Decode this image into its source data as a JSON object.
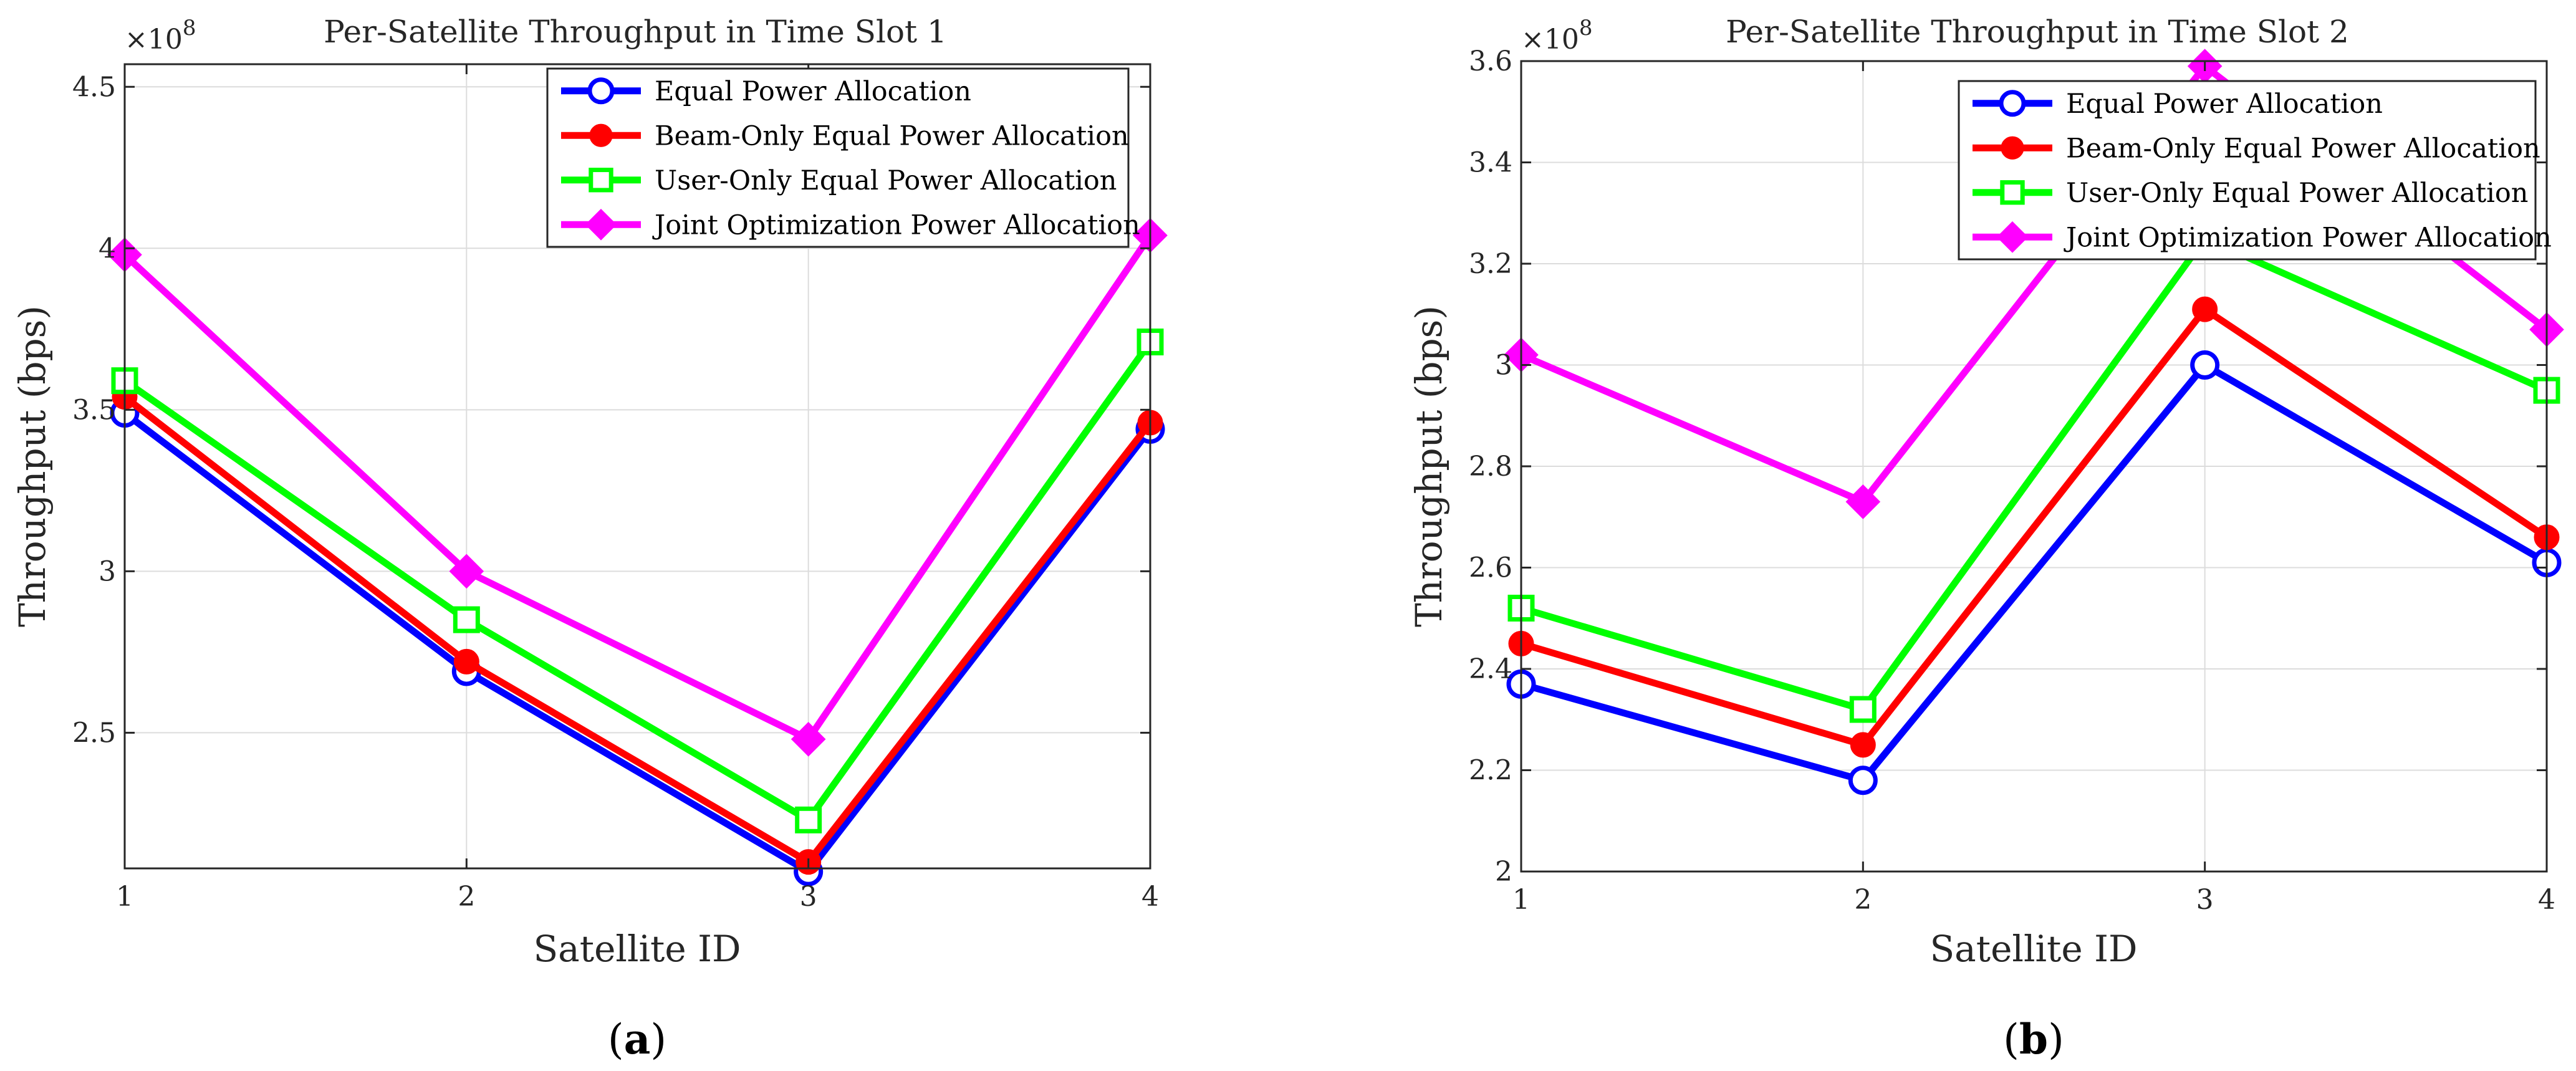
{
  "colors": {
    "equal": "#0000ff",
    "beam": "#ff0000",
    "user": "#00ff00",
    "joint": "#ff00ff"
  },
  "chart_data": [
    {
      "type": "line",
      "title": "Per-Satellite Throughput in Time Slot 1",
      "xlabel": "Satellite ID",
      "ylabel": "Throughput (bps)",
      "exponent_label": "×10",
      "exponent_power": "8",
      "x": [
        1,
        2,
        3,
        4
      ],
      "xticks": [
        "1",
        "2",
        "3",
        "4"
      ],
      "xlim": [
        1,
        4
      ],
      "ylim": [
        2.08,
        4.57
      ],
      "yticks": [
        "2.5",
        "3",
        "3.5",
        "4",
        "4.5"
      ],
      "ytick_values": [
        2.5,
        3.0,
        3.5,
        4.0,
        4.5
      ],
      "grid": true,
      "legend_position": "top-right",
      "caption_open": "(",
      "caption_letter": "a",
      "caption_close": ")",
      "series": [
        {
          "name": "Equal Power Allocation",
          "marker": "circle",
          "color_key": "equal",
          "values": [
            3.49,
            2.69,
            2.07,
            3.44
          ]
        },
        {
          "name": "Beam-Only Equal Power Allocation",
          "marker": "dot",
          "color_key": "beam",
          "values": [
            3.54,
            2.72,
            2.1,
            3.46
          ]
        },
        {
          "name": "User-Only Equal Power Allocation",
          "marker": "square",
          "color_key": "user",
          "values": [
            3.59,
            2.85,
            2.23,
            3.71
          ]
        },
        {
          "name": "Joint Optimization Power Allocation",
          "marker": "diamond",
          "color_key": "joint",
          "values": [
            3.98,
            3.0,
            2.48,
            4.04
          ]
        }
      ]
    },
    {
      "type": "line",
      "title": "Per-Satellite Throughput in Time Slot 2",
      "xlabel": "Satellite ID",
      "ylabel": "Throughput (bps)",
      "exponent_label": "×10",
      "exponent_power": "8",
      "x": [
        1,
        2,
        3,
        4
      ],
      "xticks": [
        "1",
        "2",
        "3",
        "4"
      ],
      "xlim": [
        1,
        4
      ],
      "ylim": [
        2.0,
        3.6
      ],
      "yticks": [
        "2",
        "2.2",
        "2.4",
        "2.6",
        "2.8",
        "3",
        "3.2",
        "3.4",
        "3.6"
      ],
      "ytick_values": [
        2.0,
        2.2,
        2.4,
        2.6,
        2.8,
        3.0,
        3.2,
        3.4,
        3.6
      ],
      "grid": true,
      "legend_position": "top-right",
      "caption_open": "(",
      "caption_letter": "b",
      "caption_close": ")",
      "series": [
        {
          "name": "Equal Power Allocation",
          "marker": "circle",
          "color_key": "equal",
          "values": [
            2.37,
            2.18,
            3.0,
            2.61
          ]
        },
        {
          "name": "Beam-Only Equal Power Allocation",
          "marker": "dot",
          "color_key": "beam",
          "values": [
            2.45,
            2.25,
            3.11,
            2.66
          ]
        },
        {
          "name": "User-Only Equal Power Allocation",
          "marker": "square",
          "color_key": "user",
          "values": [
            2.52,
            2.32,
            3.25,
            2.95
          ]
        },
        {
          "name": "Joint Optimization Power Allocation",
          "marker": "diamond",
          "color_key": "joint",
          "values": [
            3.02,
            2.73,
            3.59,
            3.07
          ]
        }
      ]
    }
  ]
}
